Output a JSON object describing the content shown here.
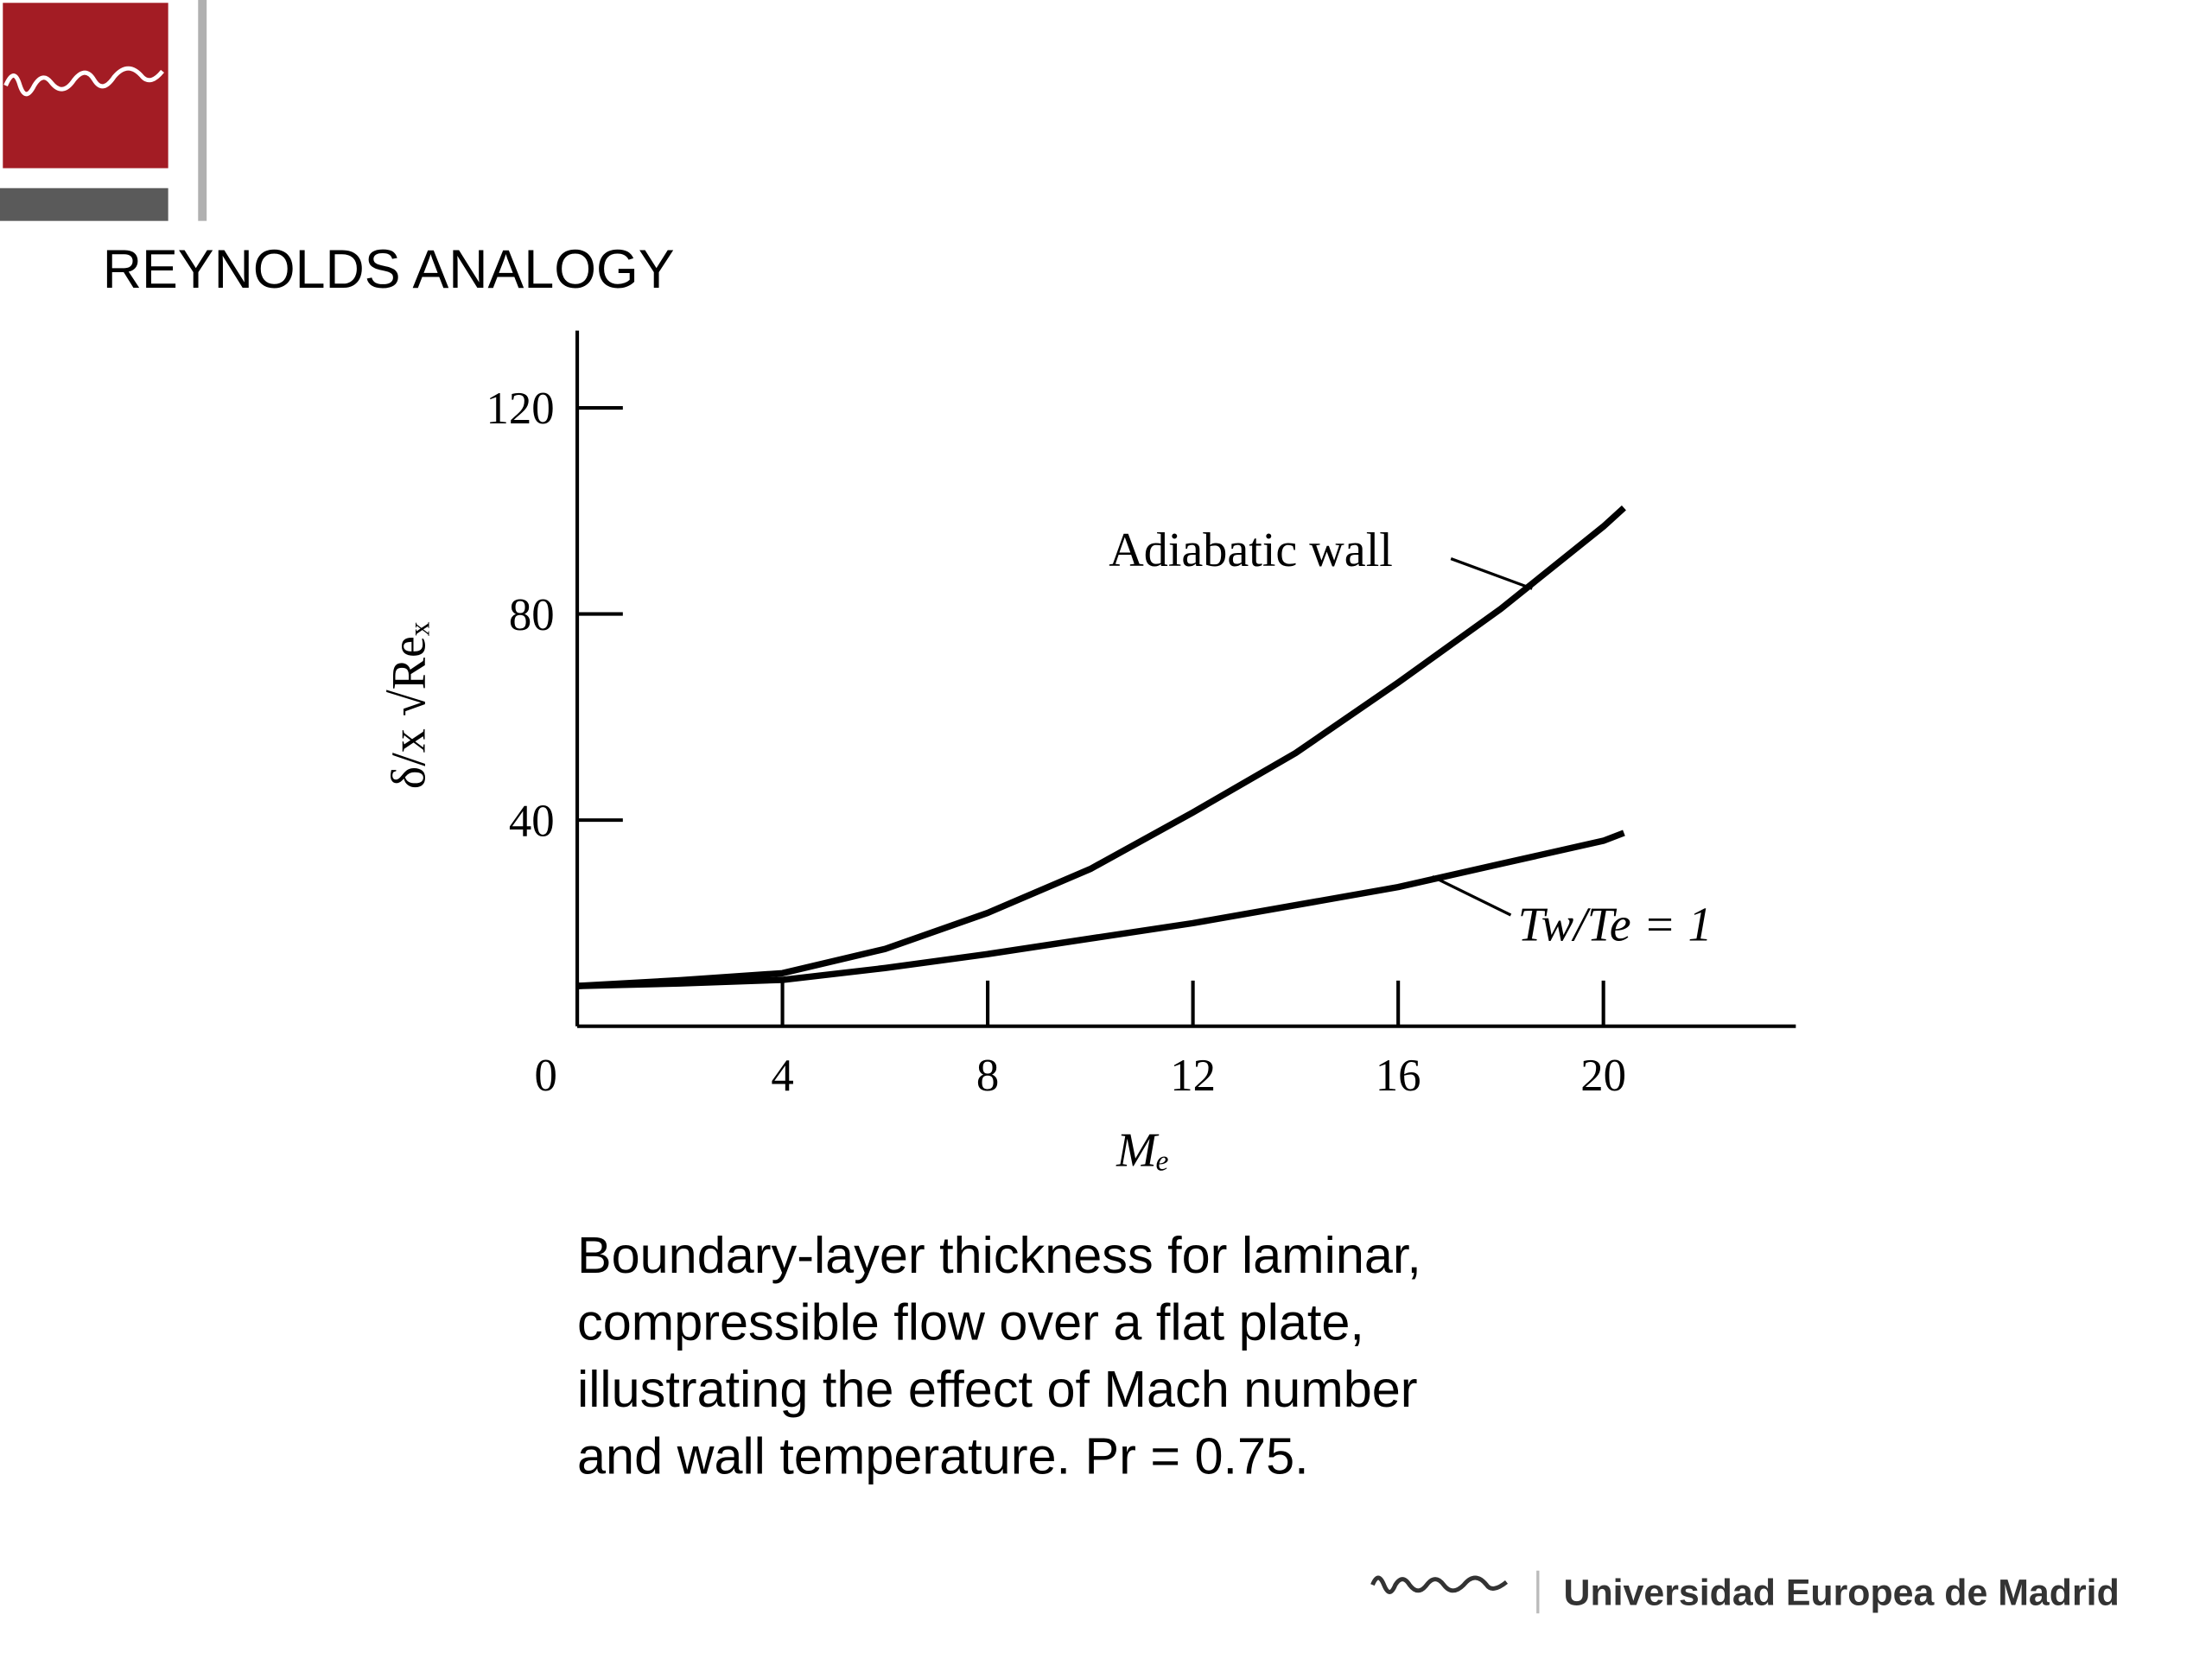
{
  "slide": {
    "title": "REYNOLDS ANALOGY",
    "caption": [
      "Boundary-layer thickness for laminar,",
      "compressible flow over a flat plate,",
      "illustrating the effect of Mach number",
      "and wall temperature. Pr = 0.75."
    ],
    "footer": "Universidad Europea de Madrid"
  },
  "chart_data": {
    "type": "line",
    "x_label": "Mₑ",
    "y_label": "δ/x √Reₓ",
    "x": [
      0,
      2,
      4,
      6,
      8,
      10,
      12,
      14,
      16,
      18,
      20,
      20.4
    ],
    "series": [
      {
        "name": "Adiabatic wall",
        "color": "#000000",
        "values": [
          7.8,
          8.9,
          10.3,
          15,
          22,
          30.5,
          41.5,
          53,
          66.7,
          81,
          97,
          100.6
        ]
      },
      {
        "name": "Tw/Te = 1",
        "color": "#000000",
        "values": [
          7.8,
          8.3,
          9,
          11.3,
          14,
          17,
          20,
          23.5,
          27,
          31.5,
          36,
          37.5
        ]
      }
    ],
    "xlim": [
      0,
      23.75
    ],
    "ylim": [
      0,
      135
    ],
    "xticks": [
      0,
      4,
      8,
      12,
      16,
      20
    ],
    "yticks": [
      40,
      80,
      120
    ],
    "grid": false
  }
}
